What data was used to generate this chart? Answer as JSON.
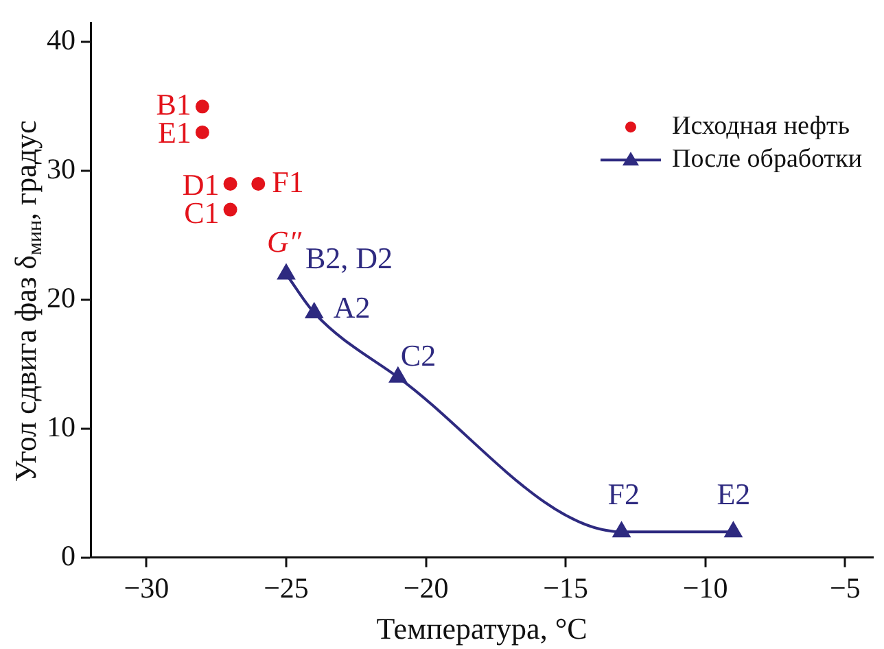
{
  "chart_data": {
    "type": "scatter",
    "xlabel": "Температура, °C",
    "ylabel": "Угол сдвига фаз δ$_{мин}$, градус",
    "xlim": [
      -32,
      -4
    ],
    "ylim": [
      0,
      41.5
    ],
    "xticks": [
      -30,
      -25,
      -20,
      -15,
      -10,
      -5
    ],
    "yticks": [
      0,
      10,
      20,
      30,
      40
    ],
    "grid": false,
    "legend": "top right",
    "series": [
      {
        "name": "Исходная нефть",
        "type": "scatter",
        "marker": "circle",
        "color": "#e3131b",
        "x": [
          -28,
          -28,
          -27,
          -26,
          -27
        ],
        "values": [
          35,
          33,
          29,
          29,
          27
        ]
      },
      {
        "name": "После обработки",
        "type": "line",
        "marker": "triangle",
        "color": "#2e2a80",
        "x": [
          -25,
          -24,
          -21,
          -13,
          -9
        ],
        "values": [
          22,
          19,
          14,
          2,
          2
        ]
      }
    ],
    "annotations": [
      {
        "text": "B1",
        "x": -28,
        "y": 35
      },
      {
        "text": "E1",
        "x": -28,
        "y": 33
      },
      {
        "text": "D1",
        "x": -27,
        "y": 29
      },
      {
        "text": "F1",
        "x": -26,
        "y": 29
      },
      {
        "text": "C1",
        "x": -27,
        "y": 27
      },
      {
        "text": "G″",
        "x": -25,
        "y": 22
      },
      {
        "text": "B2, D2",
        "x": -25,
        "y": 22
      },
      {
        "text": "A2",
        "x": -24,
        "y": 19
      },
      {
        "text": "C2",
        "x": -21,
        "y": 14
      },
      {
        "text": "F2",
        "x": -13,
        "y": 2
      },
      {
        "text": "E2",
        "x": -9,
        "y": 2
      }
    ]
  }
}
